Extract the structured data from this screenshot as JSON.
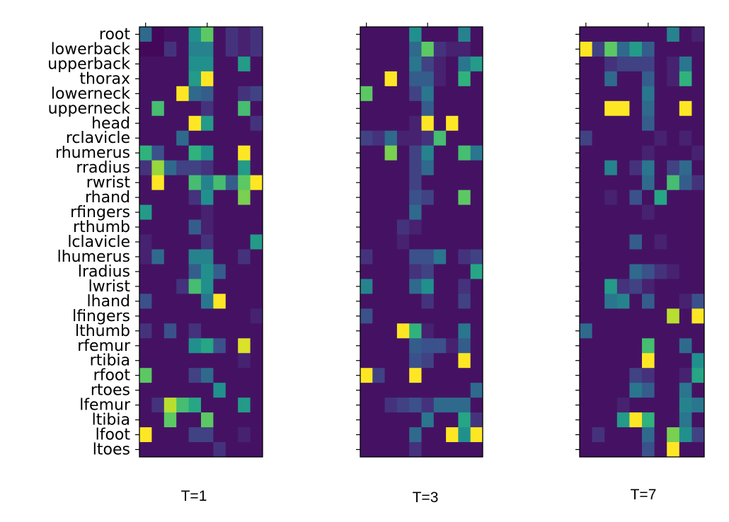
{
  "chart_data": [
    {
      "type": "heatmap",
      "title": "T=1",
      "colormap": "viridis",
      "value_range": [
        0,
        1
      ],
      "rows": [
        "root",
        "lowerback",
        "upperback",
        "thorax",
        "lowerneck",
        "upperneck",
        "head",
        "rclavicle",
        "rhumerus",
        "rradius",
        "rwrist",
        "rhand",
        "rfingers",
        "rthumb",
        "lclavicle",
        "lhumerus",
        "lradius",
        "lwrist",
        "lhand",
        "lfingers",
        "lthumb",
        "rfemur",
        "rtibia",
        "rfoot",
        "rtoes",
        "lfemur",
        "ltibia",
        "lfoot",
        "ltoes"
      ],
      "values": [
        [
          0.35,
          0.02,
          0.05,
          0.05,
          0.5,
          0.75,
          0.05,
          0.15,
          0.1,
          0.15
        ],
        [
          0.02,
          0.02,
          0.15,
          0.05,
          0.45,
          0.45,
          0.05,
          0.15,
          0.1,
          0.15
        ],
        [
          0.05,
          0.05,
          0.05,
          0.05,
          0.5,
          0.5,
          0.05,
          0.05,
          0.55,
          0.05
        ],
        [
          0.05,
          0.05,
          0.05,
          0.05,
          0.55,
          1.0,
          0.05,
          0.05,
          0.05,
          0.05
        ],
        [
          0.05,
          0.05,
          0.05,
          1.0,
          0.35,
          0.3,
          0.05,
          0.05,
          0.15,
          0.2
        ],
        [
          0.05,
          0.7,
          0.05,
          0.05,
          0.05,
          0.15,
          0.05,
          0.05,
          0.7,
          0.05
        ],
        [
          0.05,
          0.05,
          0.05,
          0.05,
          1.0,
          0.55,
          0.05,
          0.05,
          0.05,
          0.15
        ],
        [
          0.05,
          0.05,
          0.05,
          0.35,
          0.05,
          0.05,
          0.05,
          0.05,
          0.05,
          0.05
        ],
        [
          0.65,
          0.25,
          0.05,
          0.05,
          0.65,
          0.5,
          0.05,
          0.05,
          1.0,
          0.05
        ],
        [
          0.15,
          0.85,
          0.35,
          0.2,
          0.2,
          0.15,
          0.05,
          0.05,
          0.55,
          0.05
        ],
        [
          0.05,
          1.0,
          0.05,
          0.05,
          0.7,
          0.45,
          0.7,
          0.3,
          0.75,
          1.0
        ],
        [
          0.05,
          0.05,
          0.05,
          0.05,
          0.15,
          0.5,
          0.05,
          0.05,
          0.8,
          0.05
        ],
        [
          0.55,
          0.05,
          0.05,
          0.05,
          0.05,
          0.1,
          0.05,
          0.05,
          0.05,
          0.05
        ],
        [
          0.05,
          0.05,
          0.05,
          0.05,
          0.3,
          0.1,
          0.05,
          0.05,
          0.05,
          0.05
        ],
        [
          0.1,
          0.05,
          0.05,
          0.05,
          0.05,
          0.15,
          0.05,
          0.05,
          0.05,
          0.55
        ],
        [
          0.1,
          0.35,
          0.05,
          0.05,
          0.45,
          0.45,
          0.05,
          0.05,
          0.15,
          0.05
        ],
        [
          0.05,
          0.05,
          0.05,
          0.05,
          0.3,
          0.5,
          0.3,
          0.05,
          0.05,
          0.05
        ],
        [
          0.05,
          0.05,
          0.05,
          0.15,
          0.7,
          0.5,
          0.05,
          0.05,
          0.05,
          0.05
        ],
        [
          0.25,
          0.05,
          0.05,
          0.05,
          0.05,
          0.4,
          1.0,
          0.05,
          0.05,
          0.05
        ],
        [
          0.05,
          0.05,
          0.05,
          0.05,
          0.05,
          0.05,
          0.05,
          0.05,
          0.05,
          0.1
        ],
        [
          0.15,
          0.05,
          0.25,
          0.05,
          0.15,
          0.05,
          0.05,
          0.05,
          0.05,
          0.05
        ],
        [
          0.05,
          0.05,
          0.05,
          0.05,
          0.5,
          0.6,
          0.25,
          0.05,
          0.95,
          0.05
        ],
        [
          0.05,
          0.05,
          0.05,
          0.05,
          0.05,
          0.05,
          0.05,
          0.05,
          0.1,
          0.05
        ],
        [
          0.75,
          0.05,
          0.05,
          0.05,
          0.2,
          0.35,
          0.05,
          0.05,
          0.05,
          0.05
        ],
        [
          0.05,
          0.05,
          0.05,
          0.05,
          0.05,
          0.05,
          0.5,
          0.05,
          0.05,
          0.05
        ],
        [
          0.05,
          0.15,
          0.9,
          0.7,
          0.6,
          0.05,
          0.05,
          0.05,
          0.55,
          0.05
        ],
        [
          0.05,
          0.05,
          0.75,
          0.05,
          0.05,
          0.75,
          0.05,
          0.05,
          0.05,
          0.05
        ],
        [
          1.0,
          0.05,
          0.05,
          0.05,
          0.2,
          0.2,
          0.05,
          0.05,
          0.1,
          0.05
        ],
        [
          0.05,
          0.05,
          0.05,
          0.05,
          0.05,
          0.05,
          0.15,
          0.05,
          0.05,
          0.05
        ]
      ]
    },
    {
      "type": "heatmap",
      "title": "T=3",
      "colormap": "viridis",
      "value_range": [
        0,
        1
      ],
      "values": [
        [
          0.05,
          0.05,
          0.05,
          0.05,
          0.5,
          0.05,
          0.05,
          0.05,
          0.45,
          0.05
        ],
        [
          0.05,
          0.05,
          0.05,
          0.05,
          0.35,
          0.75,
          0.15,
          0.1,
          0.1,
          0.05
        ],
        [
          0.05,
          0.05,
          0.05,
          0.05,
          0.4,
          0.2,
          0.1,
          0.05,
          0.4,
          0.55
        ],
        [
          0.05,
          0.05,
          1.0,
          0.05,
          0.3,
          0.3,
          0.1,
          0.05,
          0.65,
          0.05
        ],
        [
          0.75,
          0.05,
          0.05,
          0.05,
          0.2,
          0.4,
          0.05,
          0.05,
          0.05,
          0.05
        ],
        [
          0.05,
          0.05,
          0.05,
          0.05,
          0.05,
          0.3,
          0.05,
          0.05,
          0.05,
          0.05
        ],
        [
          0.05,
          0.05,
          0.05,
          0.05,
          0.1,
          1.0,
          0.05,
          1.0,
          0.05,
          0.05
        ],
        [
          0.2,
          0.15,
          0.35,
          0.1,
          0.1,
          0.15,
          0.7,
          0.05,
          0.05,
          0.05
        ],
        [
          0.05,
          0.05,
          0.8,
          0.05,
          0.2,
          0.45,
          0.05,
          0.05,
          0.7,
          0.4
        ],
        [
          0.05,
          0.05,
          0.05,
          0.05,
          0.2,
          0.35,
          0.05,
          0.05,
          0.05,
          0.05
        ],
        [
          0.05,
          0.05,
          0.05,
          0.05,
          0.2,
          0.05,
          0.05,
          0.05,
          0.05,
          0.05
        ],
        [
          0.05,
          0.05,
          0.05,
          0.05,
          0.25,
          0.2,
          0.05,
          0.05,
          0.75,
          0.05
        ],
        [
          0.05,
          0.05,
          0.05,
          0.05,
          0.35,
          0.05,
          0.05,
          0.05,
          0.05,
          0.05
        ],
        [
          0.05,
          0.05,
          0.05,
          0.15,
          0.1,
          0.05,
          0.05,
          0.05,
          0.05,
          0.05
        ],
        [
          0.05,
          0.05,
          0.05,
          0.1,
          0.05,
          0.05,
          0.05,
          0.05,
          0.05,
          0.05
        ],
        [
          0.15,
          0.05,
          0.05,
          0.05,
          0.25,
          0.25,
          0.4,
          0.05,
          0.15,
          0.2
        ],
        [
          0.05,
          0.05,
          0.05,
          0.05,
          0.15,
          0.2,
          0.05,
          0.05,
          0.05,
          0.6
        ],
        [
          0.45,
          0.05,
          0.05,
          0.05,
          0.35,
          0.5,
          0.05,
          0.05,
          0.15,
          0.05
        ],
        [
          0.05,
          0.05,
          0.05,
          0.05,
          0.05,
          0.15,
          0.05,
          0.05,
          0.2,
          0.05
        ],
        [
          0.25,
          0.05,
          0.05,
          0.05,
          0.05,
          0.05,
          0.05,
          0.05,
          0.05,
          0.05
        ],
        [
          0.05,
          0.05,
          0.05,
          1.0,
          0.65,
          0.1,
          0.05,
          0.05,
          0.4,
          0.05
        ],
        [
          0.05,
          0.05,
          0.05,
          0.05,
          0.3,
          0.25,
          0.25,
          0.1,
          0.3,
          0.05
        ],
        [
          0.05,
          0.05,
          0.05,
          0.05,
          0.25,
          0.2,
          0.05,
          0.05,
          1.0,
          0.05
        ],
        [
          1.0,
          0.2,
          0.05,
          0.05,
          1.0,
          0.05,
          0.05,
          0.05,
          0.05,
          0.05
        ],
        [
          0.05,
          0.05,
          0.05,
          0.05,
          0.05,
          0.05,
          0.05,
          0.05,
          0.05,
          0.35
        ],
        [
          0.05,
          0.05,
          0.15,
          0.2,
          0.25,
          0.15,
          0.35,
          0.35,
          0.35,
          0.05
        ],
        [
          0.05,
          0.05,
          0.05,
          0.05,
          0.05,
          0.4,
          0.05,
          0.05,
          0.6,
          0.15
        ],
        [
          0.05,
          0.05,
          0.05,
          0.05,
          0.35,
          0.05,
          0.05,
          1.0,
          0.5,
          1.0
        ],
        [
          0.05,
          0.05,
          0.05,
          0.05,
          0.15,
          0.05,
          0.05,
          0.05,
          0.05,
          0.05
        ]
      ]
    },
    {
      "type": "heatmap",
      "title": "T=7",
      "colormap": "viridis",
      "value_range": [
        0,
        1
      ],
      "values": [
        [
          0.05,
          0.05,
          0.05,
          0.05,
          0.05,
          0.05,
          0.05,
          0.45,
          0.05,
          0.1
        ],
        [
          1.0,
          0.2,
          0.75,
          0.35,
          0.55,
          0.3,
          0.05,
          0.05,
          0.05,
          0.05
        ],
        [
          0.05,
          0.05,
          0.15,
          0.2,
          0.2,
          0.2,
          0.05,
          0.1,
          0.4,
          0.05
        ],
        [
          0.05,
          0.05,
          0.35,
          0.05,
          0.05,
          0.3,
          0.05,
          0.1,
          0.65,
          0.05
        ],
        [
          0.05,
          0.05,
          0.05,
          0.05,
          0.05,
          0.4,
          0.05,
          0.05,
          0.05,
          0.05
        ],
        [
          0.05,
          0.05,
          1.0,
          1.0,
          0.05,
          0.35,
          0.05,
          0.05,
          1.0,
          0.05
        ],
        [
          0.05,
          0.05,
          0.05,
          0.05,
          0.05,
          0.3,
          0.05,
          0.05,
          0.05,
          0.05
        ],
        [
          0.2,
          0.05,
          0.05,
          0.05,
          0.05,
          0.05,
          0.1,
          0.05,
          0.1,
          0.05
        ],
        [
          0.05,
          0.05,
          0.05,
          0.05,
          0.05,
          0.1,
          0.05,
          0.05,
          0.05,
          0.1
        ],
        [
          0.05,
          0.05,
          0.45,
          0.05,
          0.15,
          0.4,
          0.05,
          0.2,
          0.35,
          0.05
        ],
        [
          0.05,
          0.05,
          0.05,
          0.05,
          0.05,
          0.35,
          0.05,
          0.7,
          0.3,
          0.15
        ],
        [
          0.05,
          0.05,
          0.1,
          0.05,
          0.25,
          0.05,
          0.6,
          0.05,
          0.05,
          0.05
        ],
        [
          0.05,
          0.05,
          0.05,
          0.05,
          0.05,
          0.1,
          0.05,
          0.05,
          0.05,
          0.05
        ],
        [
          0.05,
          0.05,
          0.05,
          0.05,
          0.05,
          0.05,
          0.05,
          0.05,
          0.05,
          0.05
        ],
        [
          0.05,
          0.05,
          0.05,
          0.05,
          0.3,
          0.05,
          0.1,
          0.05,
          0.05,
          0.05
        ],
        [
          0.05,
          0.05,
          0.05,
          0.05,
          0.05,
          0.05,
          0.05,
          0.05,
          0.05,
          0.05
        ],
        [
          0.05,
          0.05,
          0.05,
          0.05,
          0.35,
          0.25,
          0.15,
          0.1,
          0.05,
          0.05
        ],
        [
          0.05,
          0.05,
          0.55,
          0.15,
          0.2,
          0.1,
          0.05,
          0.05,
          0.05,
          0.05
        ],
        [
          0.05,
          0.05,
          0.4,
          0.45,
          0.05,
          0.3,
          0.05,
          0.05,
          0.1,
          0.25
        ],
        [
          0.05,
          0.05,
          0.05,
          0.05,
          0.05,
          0.05,
          0.05,
          0.9,
          0.05,
          1.0
        ],
        [
          0.35,
          0.05,
          0.05,
          0.05,
          0.05,
          0.05,
          0.05,
          0.05,
          0.05,
          0.05
        ],
        [
          0.05,
          0.05,
          0.05,
          0.05,
          0.05,
          0.7,
          0.05,
          0.05,
          0.35,
          0.05
        ],
        [
          0.05,
          0.05,
          0.05,
          0.05,
          0.05,
          1.0,
          0.05,
          0.05,
          0.05,
          0.5
        ],
        [
          0.05,
          0.05,
          0.05,
          0.05,
          0.2,
          0.15,
          0.05,
          0.05,
          0.1,
          0.6
        ],
        [
          0.05,
          0.05,
          0.05,
          0.05,
          0.4,
          0.3,
          0.05,
          0.05,
          0.4,
          0.05
        ],
        [
          0.05,
          0.05,
          0.05,
          0.1,
          0.05,
          0.05,
          0.05,
          0.05,
          0.45,
          0.4
        ],
        [
          0.05,
          0.05,
          0.05,
          0.55,
          1.0,
          0.65,
          0.05,
          0.05,
          0.4,
          0.05
        ],
        [
          0.05,
          0.15,
          0.05,
          0.05,
          0.05,
          0.35,
          0.05,
          0.8,
          0.5,
          0.2
        ],
        [
          0.05,
          0.05,
          0.05,
          0.05,
          0.05,
          0.25,
          0.05,
          1.0,
          0.05,
          0.05
        ]
      ]
    }
  ]
}
